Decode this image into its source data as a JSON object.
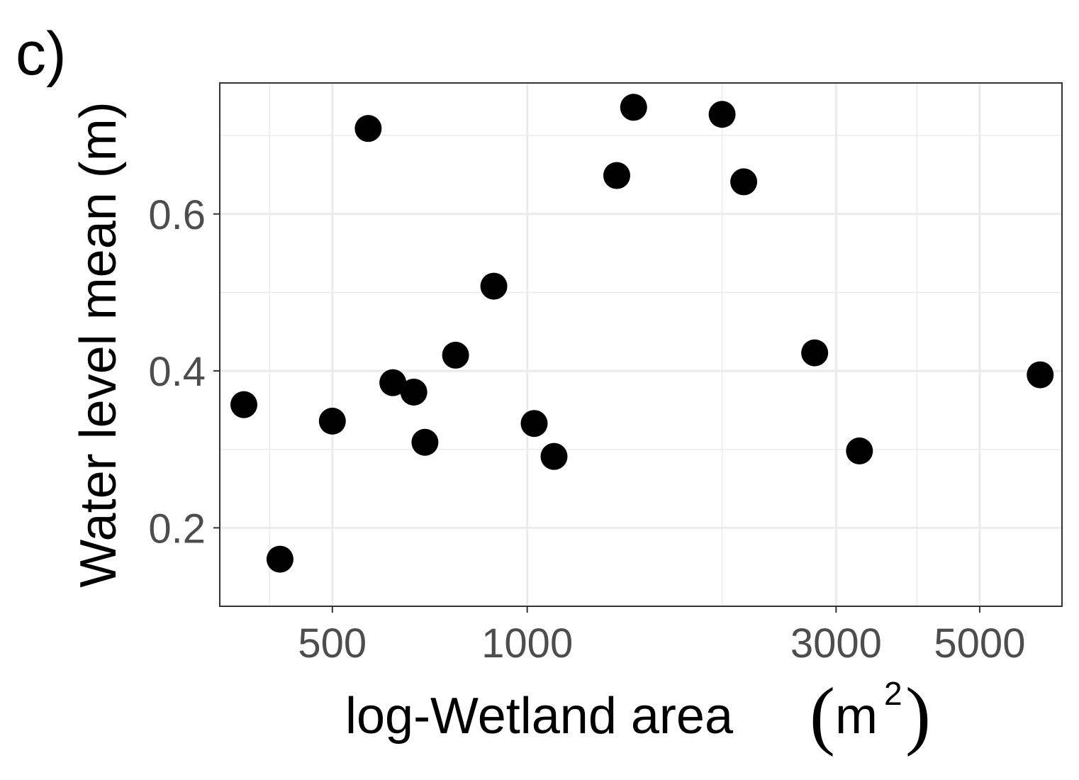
{
  "chart_data": {
    "type": "scatter",
    "panel_label": "c)",
    "xlabel": {
      "text": "log-Wetland area ",
      "open": "(",
      "unit": "m",
      "sup": "2",
      "close": ")"
    },
    "ylabel": "Water level mean (m)",
    "xscale": "log",
    "xlim": [
      335,
      6700
    ],
    "ylim": [
      0.1,
      0.767
    ],
    "x_major_ticks": [
      500,
      1000,
      3000,
      5000
    ],
    "x_major_tick_labels": [
      "500",
      "1000",
      "3000",
      "5000"
    ],
    "x_minor_ticks": [
      400,
      2000,
      4000
    ],
    "y_major_ticks": [
      0.2,
      0.4,
      0.6
    ],
    "y_major_tick_labels": [
      "0.2",
      "0.4",
      "0.6"
    ],
    "y_minor_ticks": [
      0.3,
      0.5,
      0.7
    ],
    "grid": true,
    "legend": "none",
    "point_color": "#000000",
    "points": [
      {
        "x": 365,
        "y": 0.357
      },
      {
        "x": 415,
        "y": 0.16
      },
      {
        "x": 500,
        "y": 0.336
      },
      {
        "x": 568,
        "y": 0.709
      },
      {
        "x": 620,
        "y": 0.385
      },
      {
        "x": 668,
        "y": 0.373
      },
      {
        "x": 695,
        "y": 0.309
      },
      {
        "x": 775,
        "y": 0.42
      },
      {
        "x": 888,
        "y": 0.508
      },
      {
        "x": 1025,
        "y": 0.333
      },
      {
        "x": 1100,
        "y": 0.291
      },
      {
        "x": 1375,
        "y": 0.649
      },
      {
        "x": 1460,
        "y": 0.736
      },
      {
        "x": 2000,
        "y": 0.727
      },
      {
        "x": 2160,
        "y": 0.641
      },
      {
        "x": 2780,
        "y": 0.423
      },
      {
        "x": 3260,
        "y": 0.298
      },
      {
        "x": 6200,
        "y": 0.395
      }
    ]
  }
}
